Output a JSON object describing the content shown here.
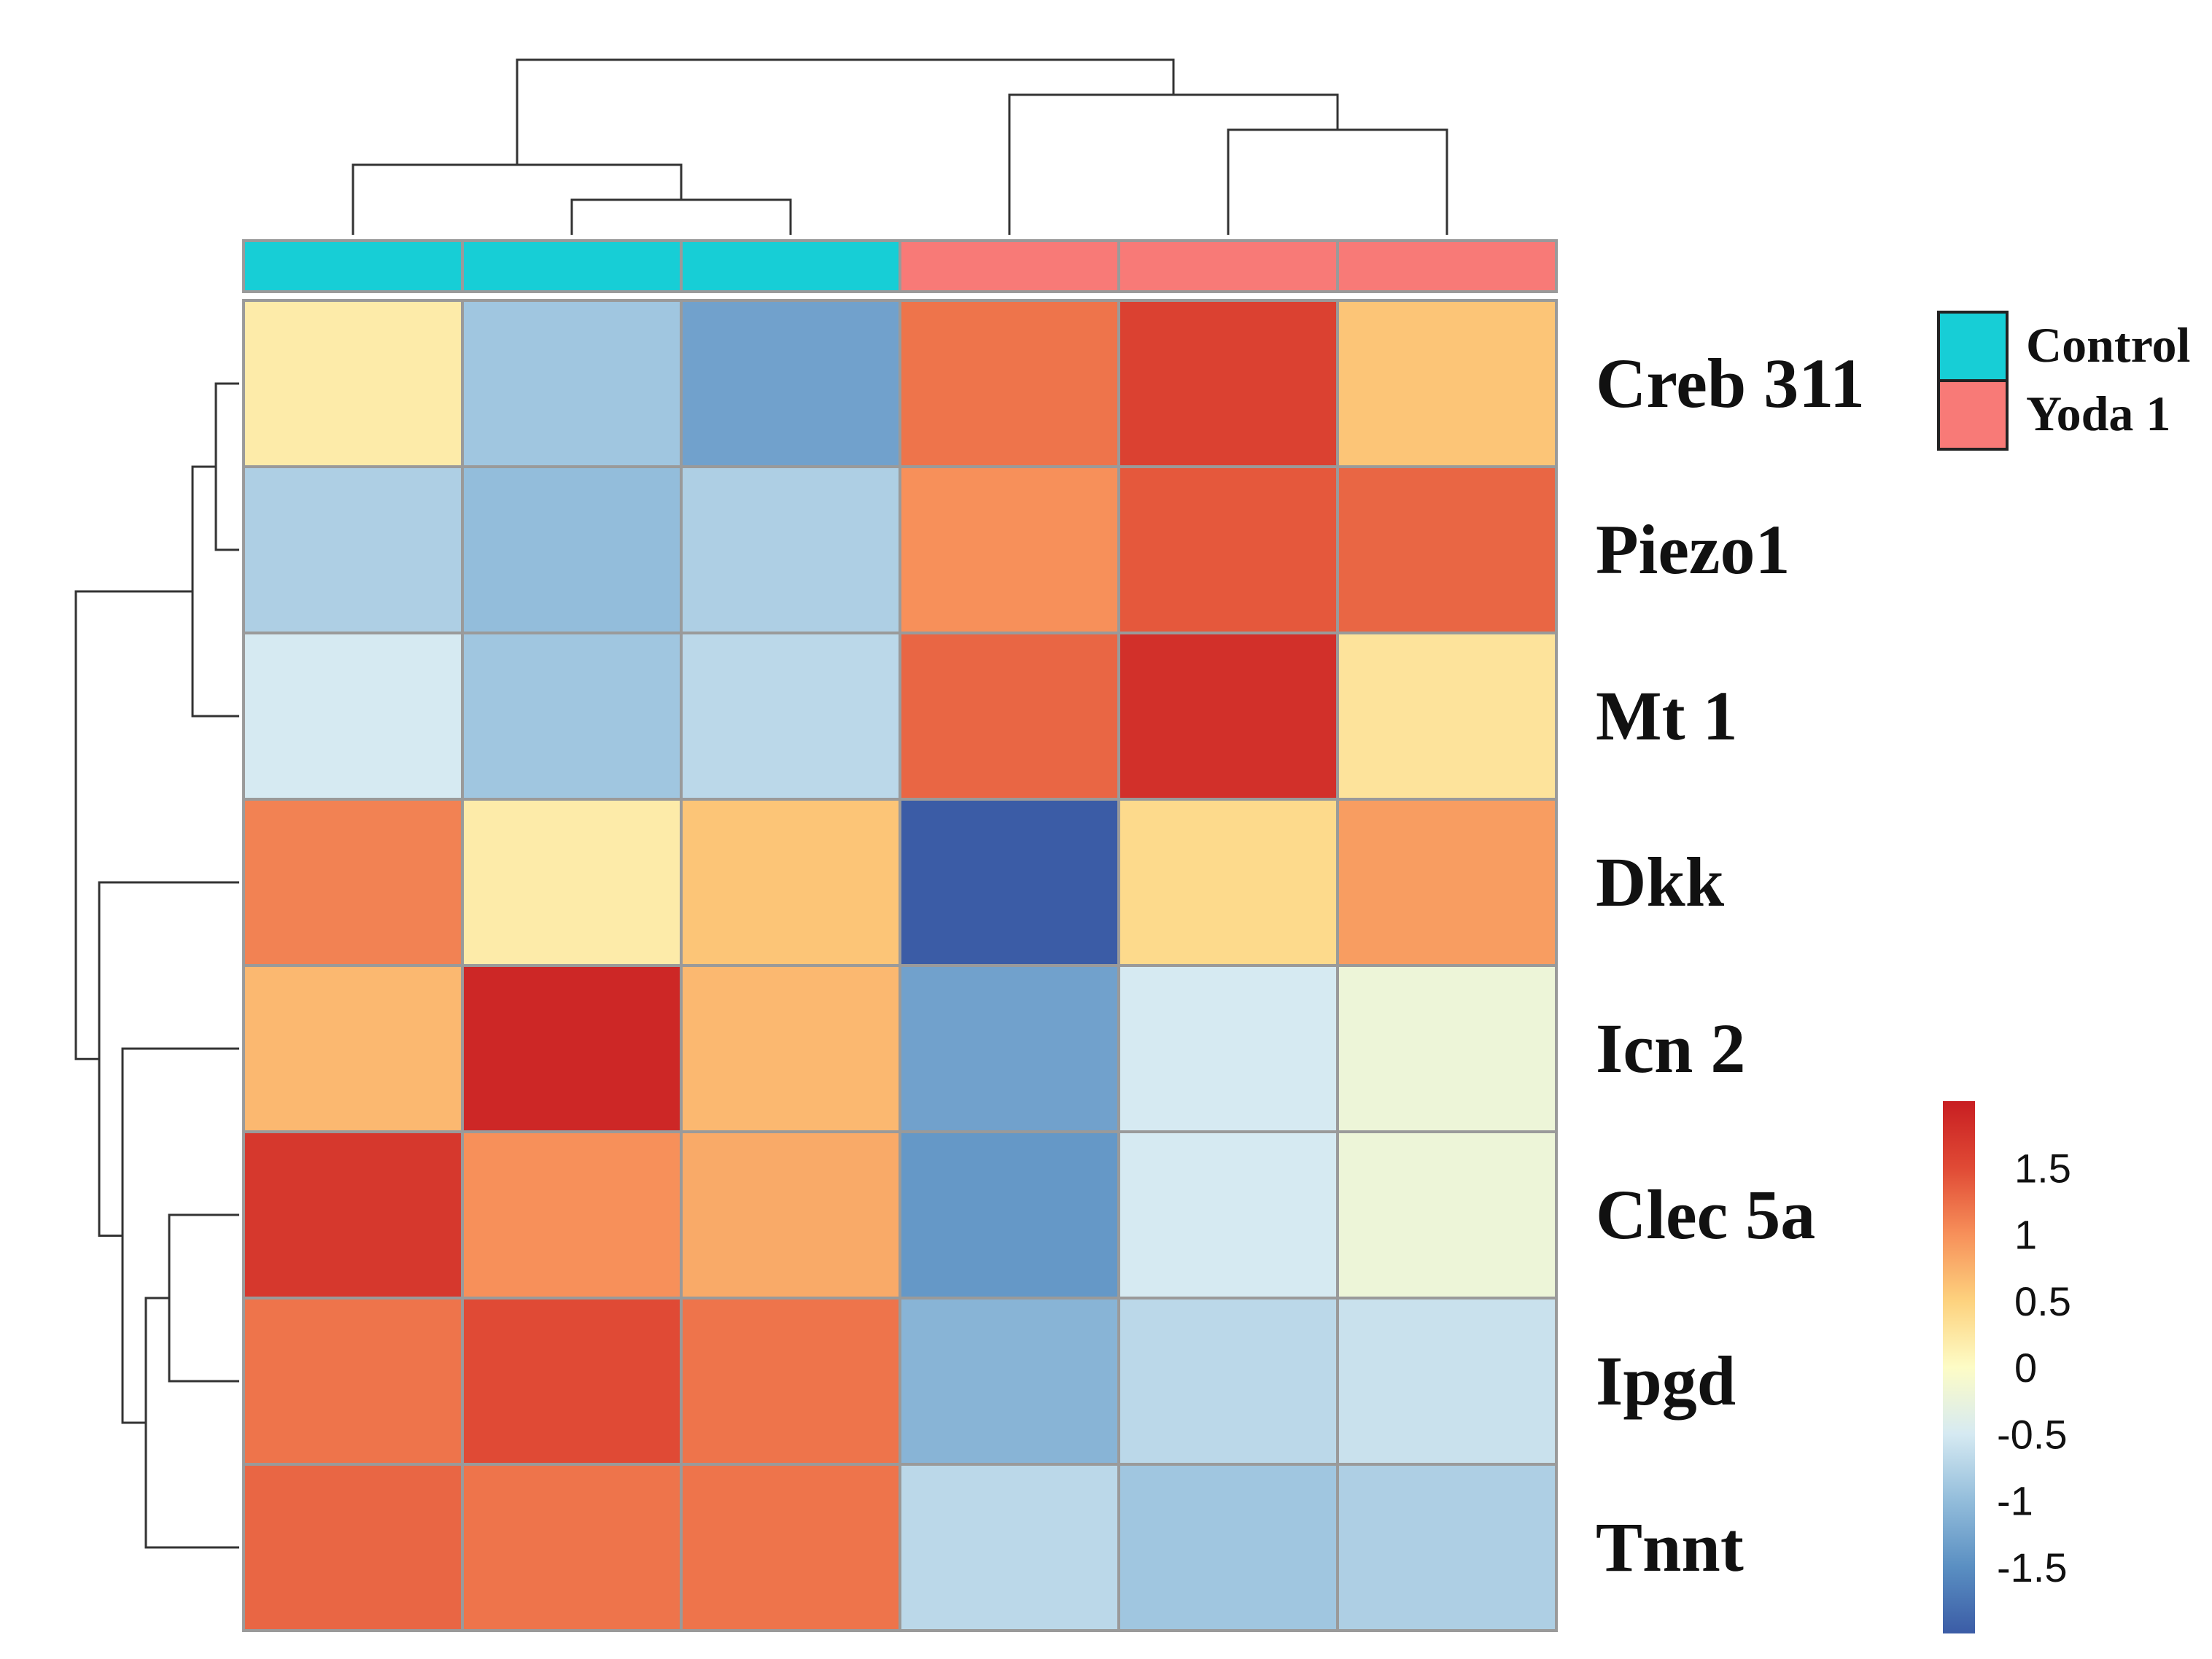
{
  "chart_data": {
    "type": "heatmap",
    "title": "",
    "rows": [
      "Creb 311",
      "Piezo1",
      "Mt 1",
      "Dkk",
      "Icn 2",
      "Clec 5a",
      "Ipgd",
      "Tnnt"
    ],
    "column_groups": [
      "Control",
      "Control",
      "Control",
      "Yoda 1",
      "Yoda 1",
      "Yoda 1"
    ],
    "values": [
      [
        0.2,
        -0.9,
        -1.3,
        1.2,
        1.6,
        0.6
      ],
      [
        -0.8,
        -1.0,
        -0.8,
        1.0,
        1.4,
        1.3
      ],
      [
        -0.5,
        -0.9,
        -0.7,
        1.3,
        1.8,
        0.3
      ],
      [
        1.1,
        0.2,
        0.6,
        -2.0,
        0.4,
        0.9
      ],
      [
        0.7,
        1.9,
        0.7,
        -1.3,
        -0.5,
        -0.2
      ],
      [
        1.7,
        1.0,
        0.8,
        -1.4,
        -0.5,
        -0.2
      ],
      [
        1.2,
        1.5,
        1.2,
        -1.1,
        -0.7,
        -0.6
      ],
      [
        1.3,
        1.2,
        1.2,
        -0.7,
        -0.9,
        -0.8
      ]
    ],
    "legend": {
      "entries": [
        {
          "name": "Control",
          "color": "#17ced6"
        },
        {
          "name": "Yoda 1",
          "color": "#f87a77"
        }
      ],
      "placement": "top-right"
    },
    "colorbar": {
      "range": [
        -2,
        2
      ],
      "ticks": [
        1.5,
        1,
        0.5,
        0,
        -0.5,
        -1,
        -1.5
      ],
      "tick_labels": [
        "1.5",
        "1",
        "0.5",
        "0",
        "-0.5",
        "-1",
        "-1.5"
      ],
      "colors": [
        "#3b5ca6",
        "#5a8fc2",
        "#93bddb",
        "#d6eaf2",
        "#fdfcc6",
        "#fdd27e",
        "#f7905a",
        "#e04a35",
        "#c81e22"
      ]
    },
    "row_dendrogram": [
      [
        0,
        1
      ],
      [
        8,
        2
      ],
      [
        5,
        6
      ],
      [
        10,
        7
      ],
      [
        4,
        11
      ],
      [
        3,
        12
      ],
      [
        9,
        13
      ]
    ],
    "col_dendrogram": [
      [
        1,
        2
      ],
      [
        0,
        6
      ],
      [
        4,
        5
      ],
      [
        3,
        8
      ],
      [
        7,
        9
      ]
    ]
  }
}
